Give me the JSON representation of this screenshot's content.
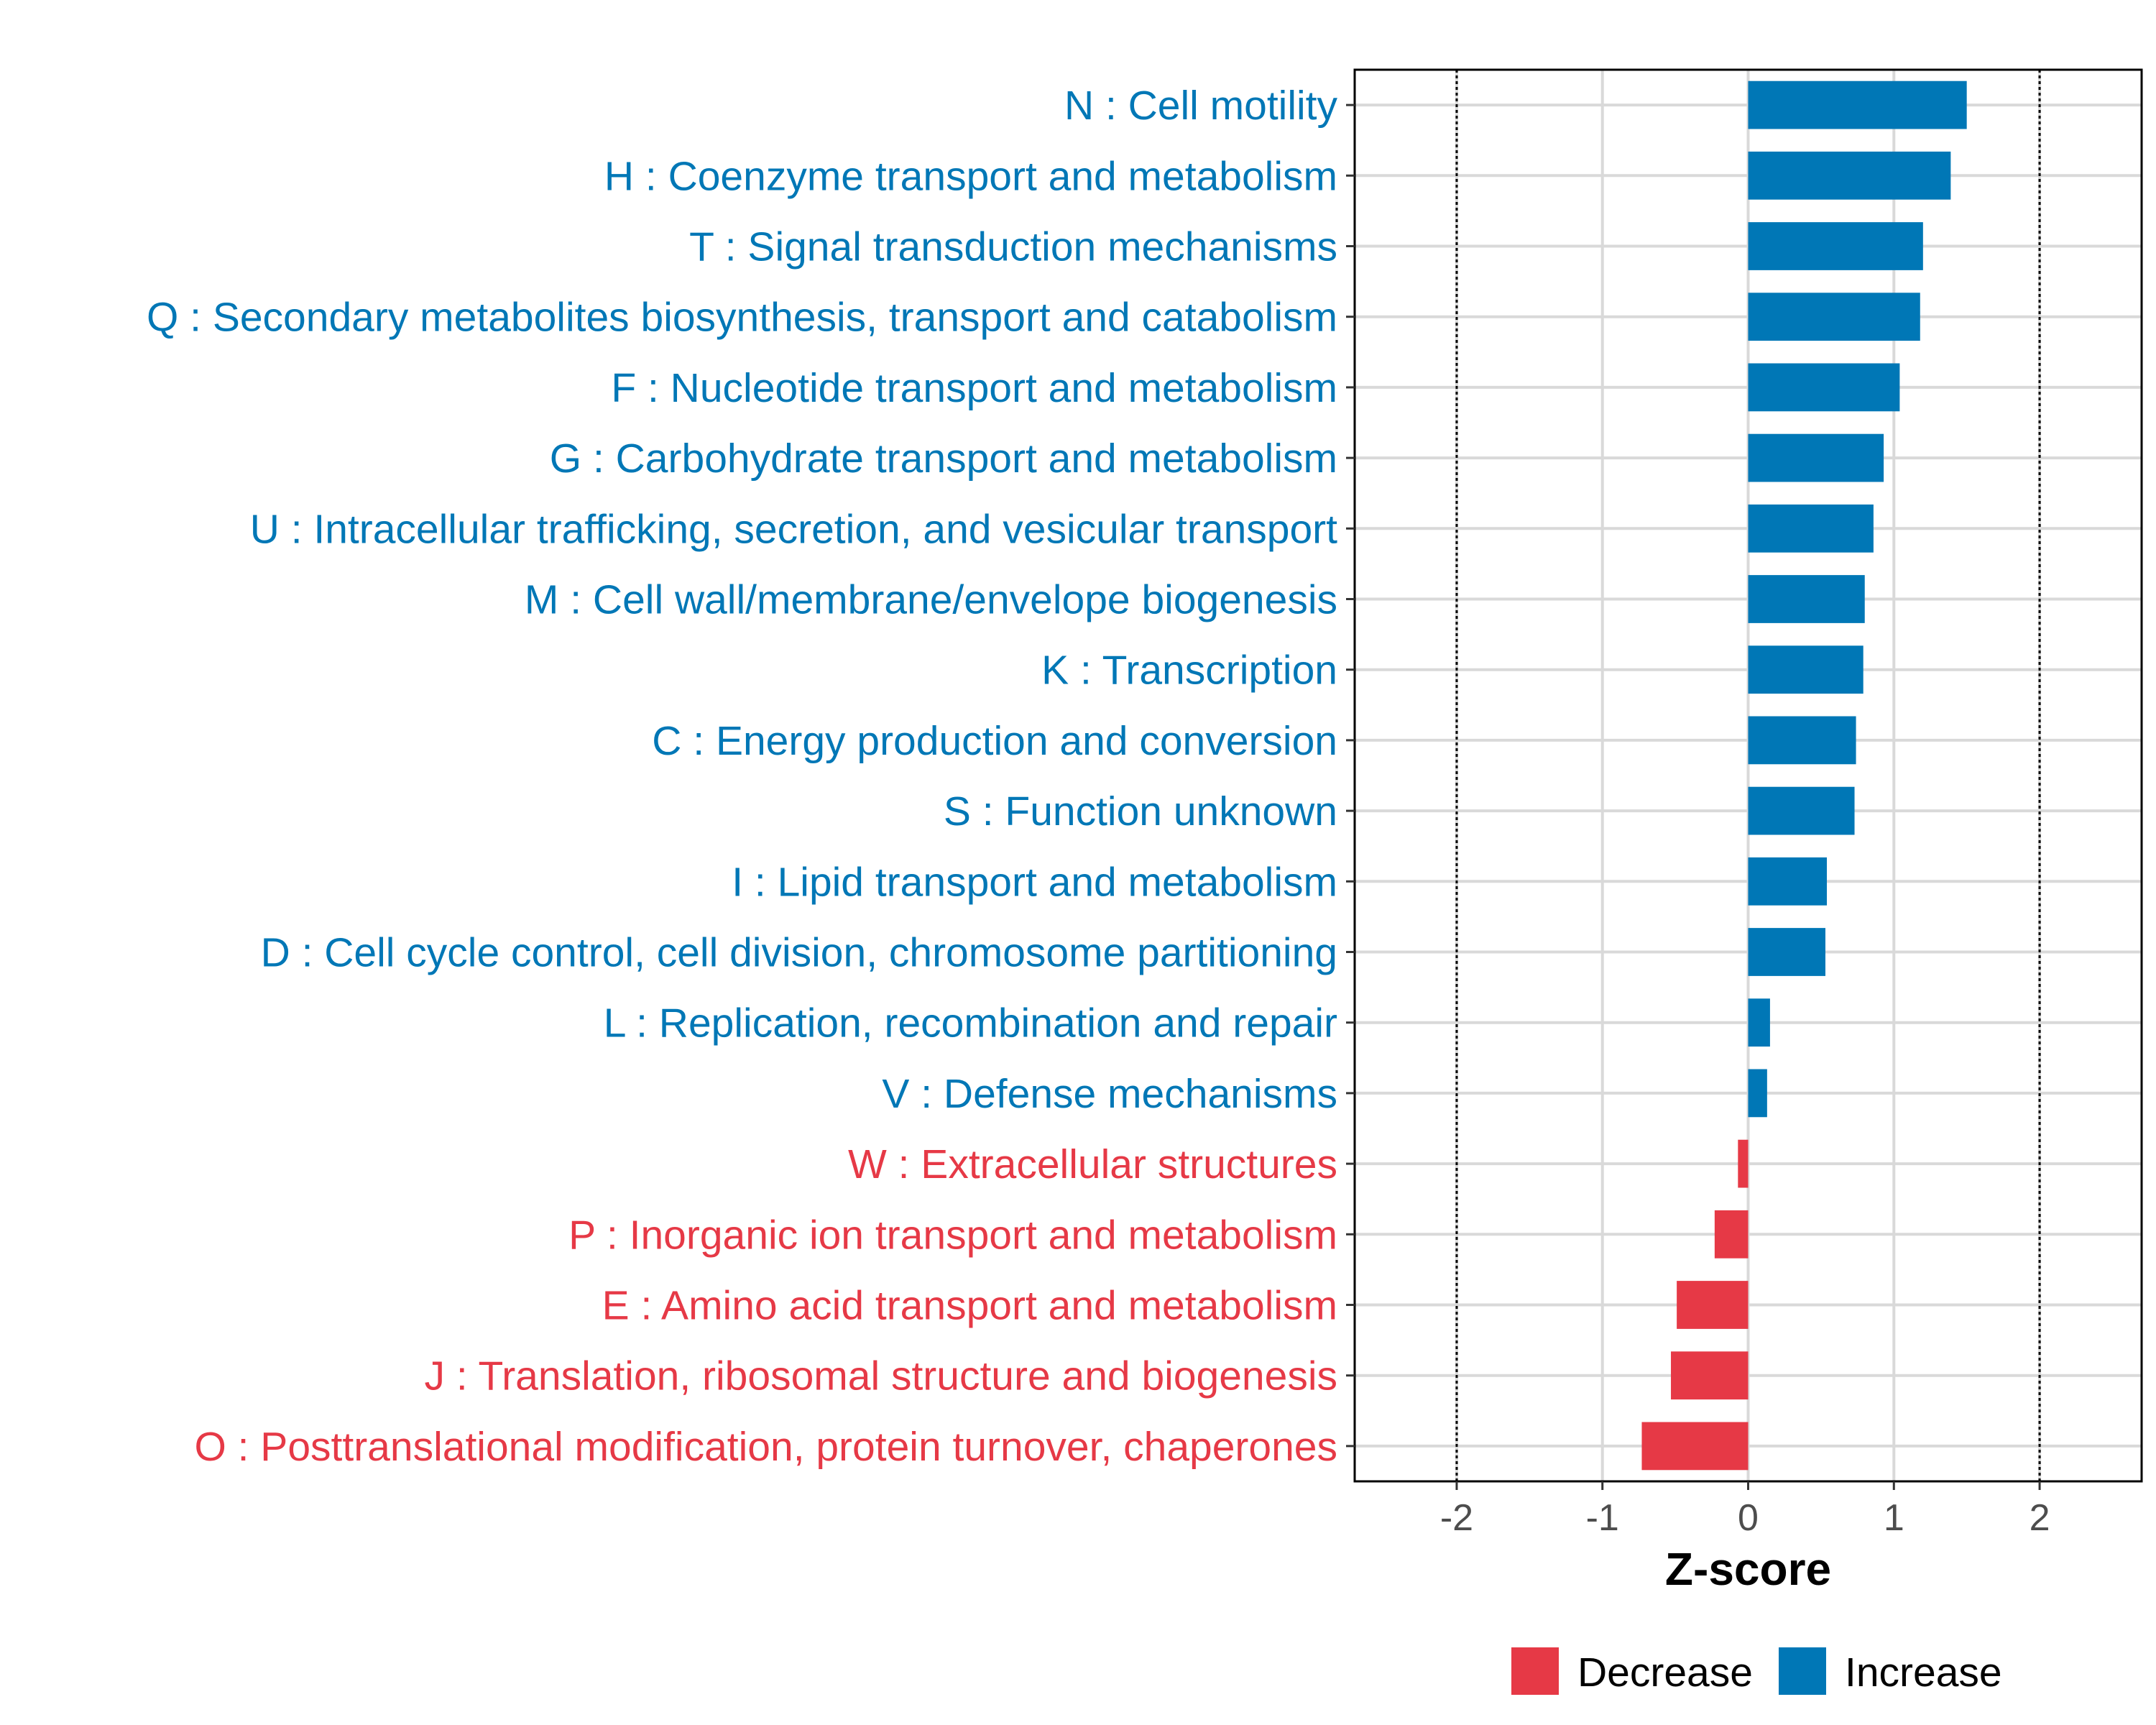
{
  "chart_data": {
    "type": "bar",
    "orientation": "horizontal",
    "xlabel": "Z-score",
    "xlim": [
      -2.7,
      2.7
    ],
    "xticks": [
      -2,
      -1,
      0,
      1,
      2
    ],
    "xtick_labels": [
      "-2",
      "-1",
      "0",
      "1",
      "2"
    ],
    "reference_lines": [
      -2,
      2
    ],
    "grid": true,
    "legend_position": "bottom",
    "legend": [
      {
        "name": "Decrease",
        "color": "#E63946"
      },
      {
        "name": "Increase",
        "color": "#0077B6"
      }
    ],
    "categories": [
      "N : Cell motility",
      "H : Coenzyme transport and metabolism",
      "T : Signal transduction mechanisms",
      "Q : Secondary metabolites biosynthesis, transport and catabolism",
      "F : Nucleotide transport and metabolism",
      "G : Carbohydrate transport and metabolism",
      "U : Intracellular trafficking, secretion, and vesicular transport",
      "M : Cell wall/membrane/envelope biogenesis",
      "K : Transcription",
      "C : Energy production and conversion",
      "S : Function unknown",
      "I : Lipid transport and metabolism",
      "D : Cell cycle control, cell division, chromosome partitioning",
      "L : Replication, recombination and repair",
      "V : Defense mechanisms",
      "W : Extracellular structures",
      "P : Inorganic ion transport and metabolism",
      "E : Amino acid transport and metabolism",
      "J : Translation, ribosomal structure and biogenesis",
      "O : Posttranslational modification, protein turnover, chaperones"
    ],
    "values": [
      1.5,
      1.39,
      1.2,
      1.18,
      1.04,
      0.93,
      0.86,
      0.8,
      0.79,
      0.74,
      0.73,
      0.54,
      0.53,
      0.15,
      0.13,
      -0.07,
      -0.23,
      -0.49,
      -0.53,
      -0.73
    ],
    "directions": [
      "Increase",
      "Increase",
      "Increase",
      "Increase",
      "Increase",
      "Increase",
      "Increase",
      "Increase",
      "Increase",
      "Increase",
      "Increase",
      "Increase",
      "Increase",
      "Increase",
      "Increase",
      "Decrease",
      "Decrease",
      "Decrease",
      "Decrease",
      "Decrease"
    ]
  }
}
